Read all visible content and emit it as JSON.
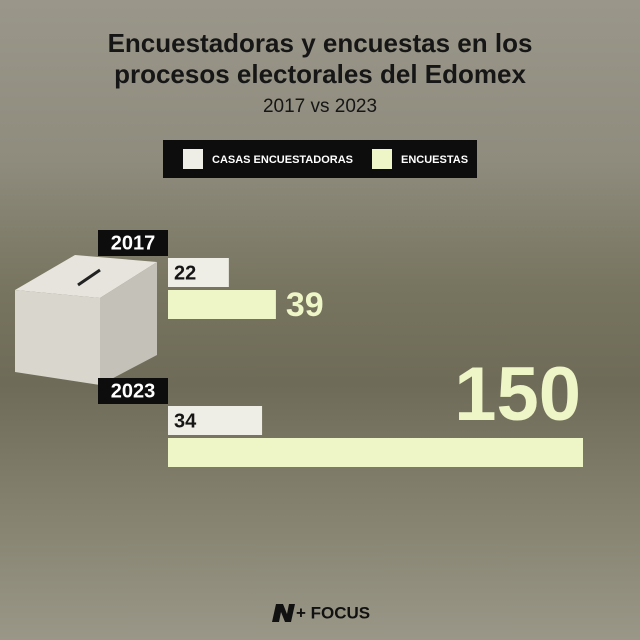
{
  "chart_data": {
    "type": "bar",
    "orientation": "horizontal",
    "title": "Encuestadoras y encuestas en los procesos electorales del Edomex",
    "subtitle": "2017 vs 2023",
    "categories": [
      "2017",
      "2023"
    ],
    "series": [
      {
        "name": "CASAS ENCUESTADORAS",
        "color": "#eeede6",
        "values": [
          22,
          34
        ]
      },
      {
        "name": "ENCUESTAS",
        "color": "#eef5c6",
        "values": [
          39,
          150
        ]
      }
    ],
    "brand": "+ FOCUS"
  }
}
